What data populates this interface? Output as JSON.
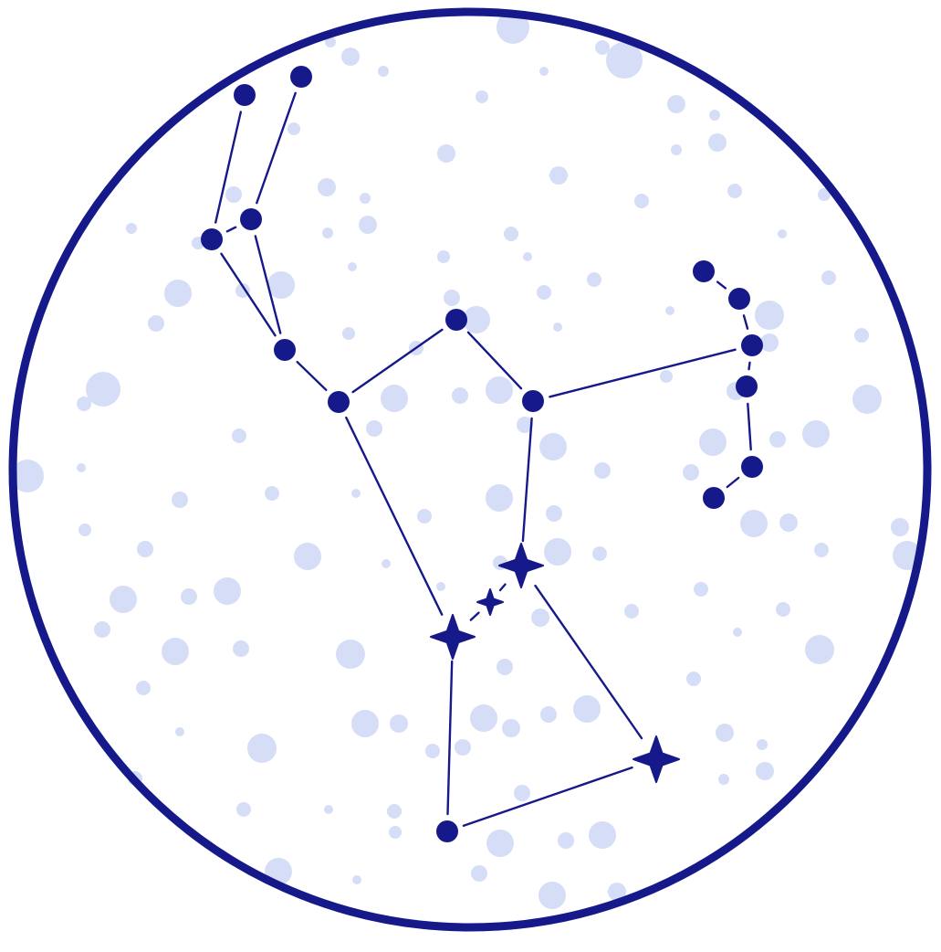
{
  "colors": {
    "background": "#ffffff",
    "ring": "#15198a",
    "constellation_star": "#15198a",
    "constellation_line": "#15198a",
    "background_star": "#d6ddf7"
  },
  "icons": {
    "round_star": "filled-circle",
    "bright_star": "four-point-sparkle"
  }
}
